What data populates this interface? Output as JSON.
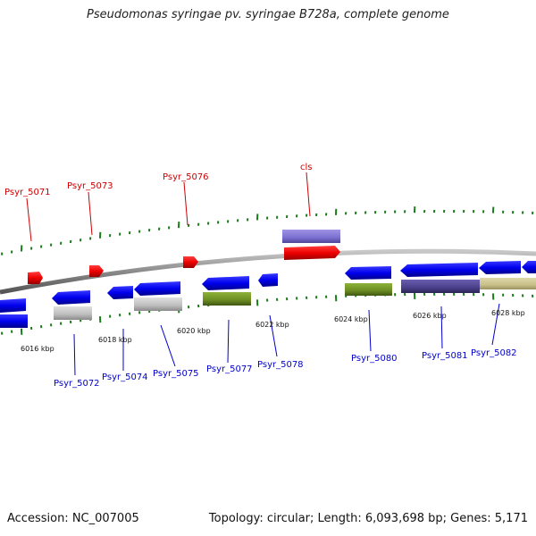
{
  "title": "Pseudomonas syringae pv. syringae B728a, complete genome",
  "footer": {
    "accession": "Accession: NC_007005",
    "summary": "Topology: circular; Length: 6,093,698 bp; Genes: 5,171"
  },
  "colors": {
    "backbone": "#8a8a8a",
    "tick": "#1a7a1a",
    "gene_blue": "#0000ee",
    "gene_red": "#ee0000",
    "label_blue": "#0000cc",
    "label_red": "#cc0000",
    "feature_gray": "#bdbdbd",
    "feature_olive": "#6b8c21",
    "feature_lavender": "#7b6fd0",
    "feature_navy": "#4a3f8a",
    "feature_khaki": "#c9c08a"
  },
  "scale_labels": [
    "6016 kbp",
    "6018 kbp",
    "6020 kbp",
    "6022 kbp",
    "6024 kbp",
    "6026 kbp",
    "6028 kbp"
  ],
  "gene_labels": {
    "top": [
      "Psyr_5071",
      "Psyr_5073",
      "Psyr_5076",
      "cls"
    ],
    "bottom": [
      "Psyr_5072",
      "Psyr_5074",
      "Psyr_5075",
      "Psyr_5077",
      "Psyr_5078",
      "Psyr_5080",
      "Psyr_5081",
      "Psyr_5082"
    ]
  }
}
